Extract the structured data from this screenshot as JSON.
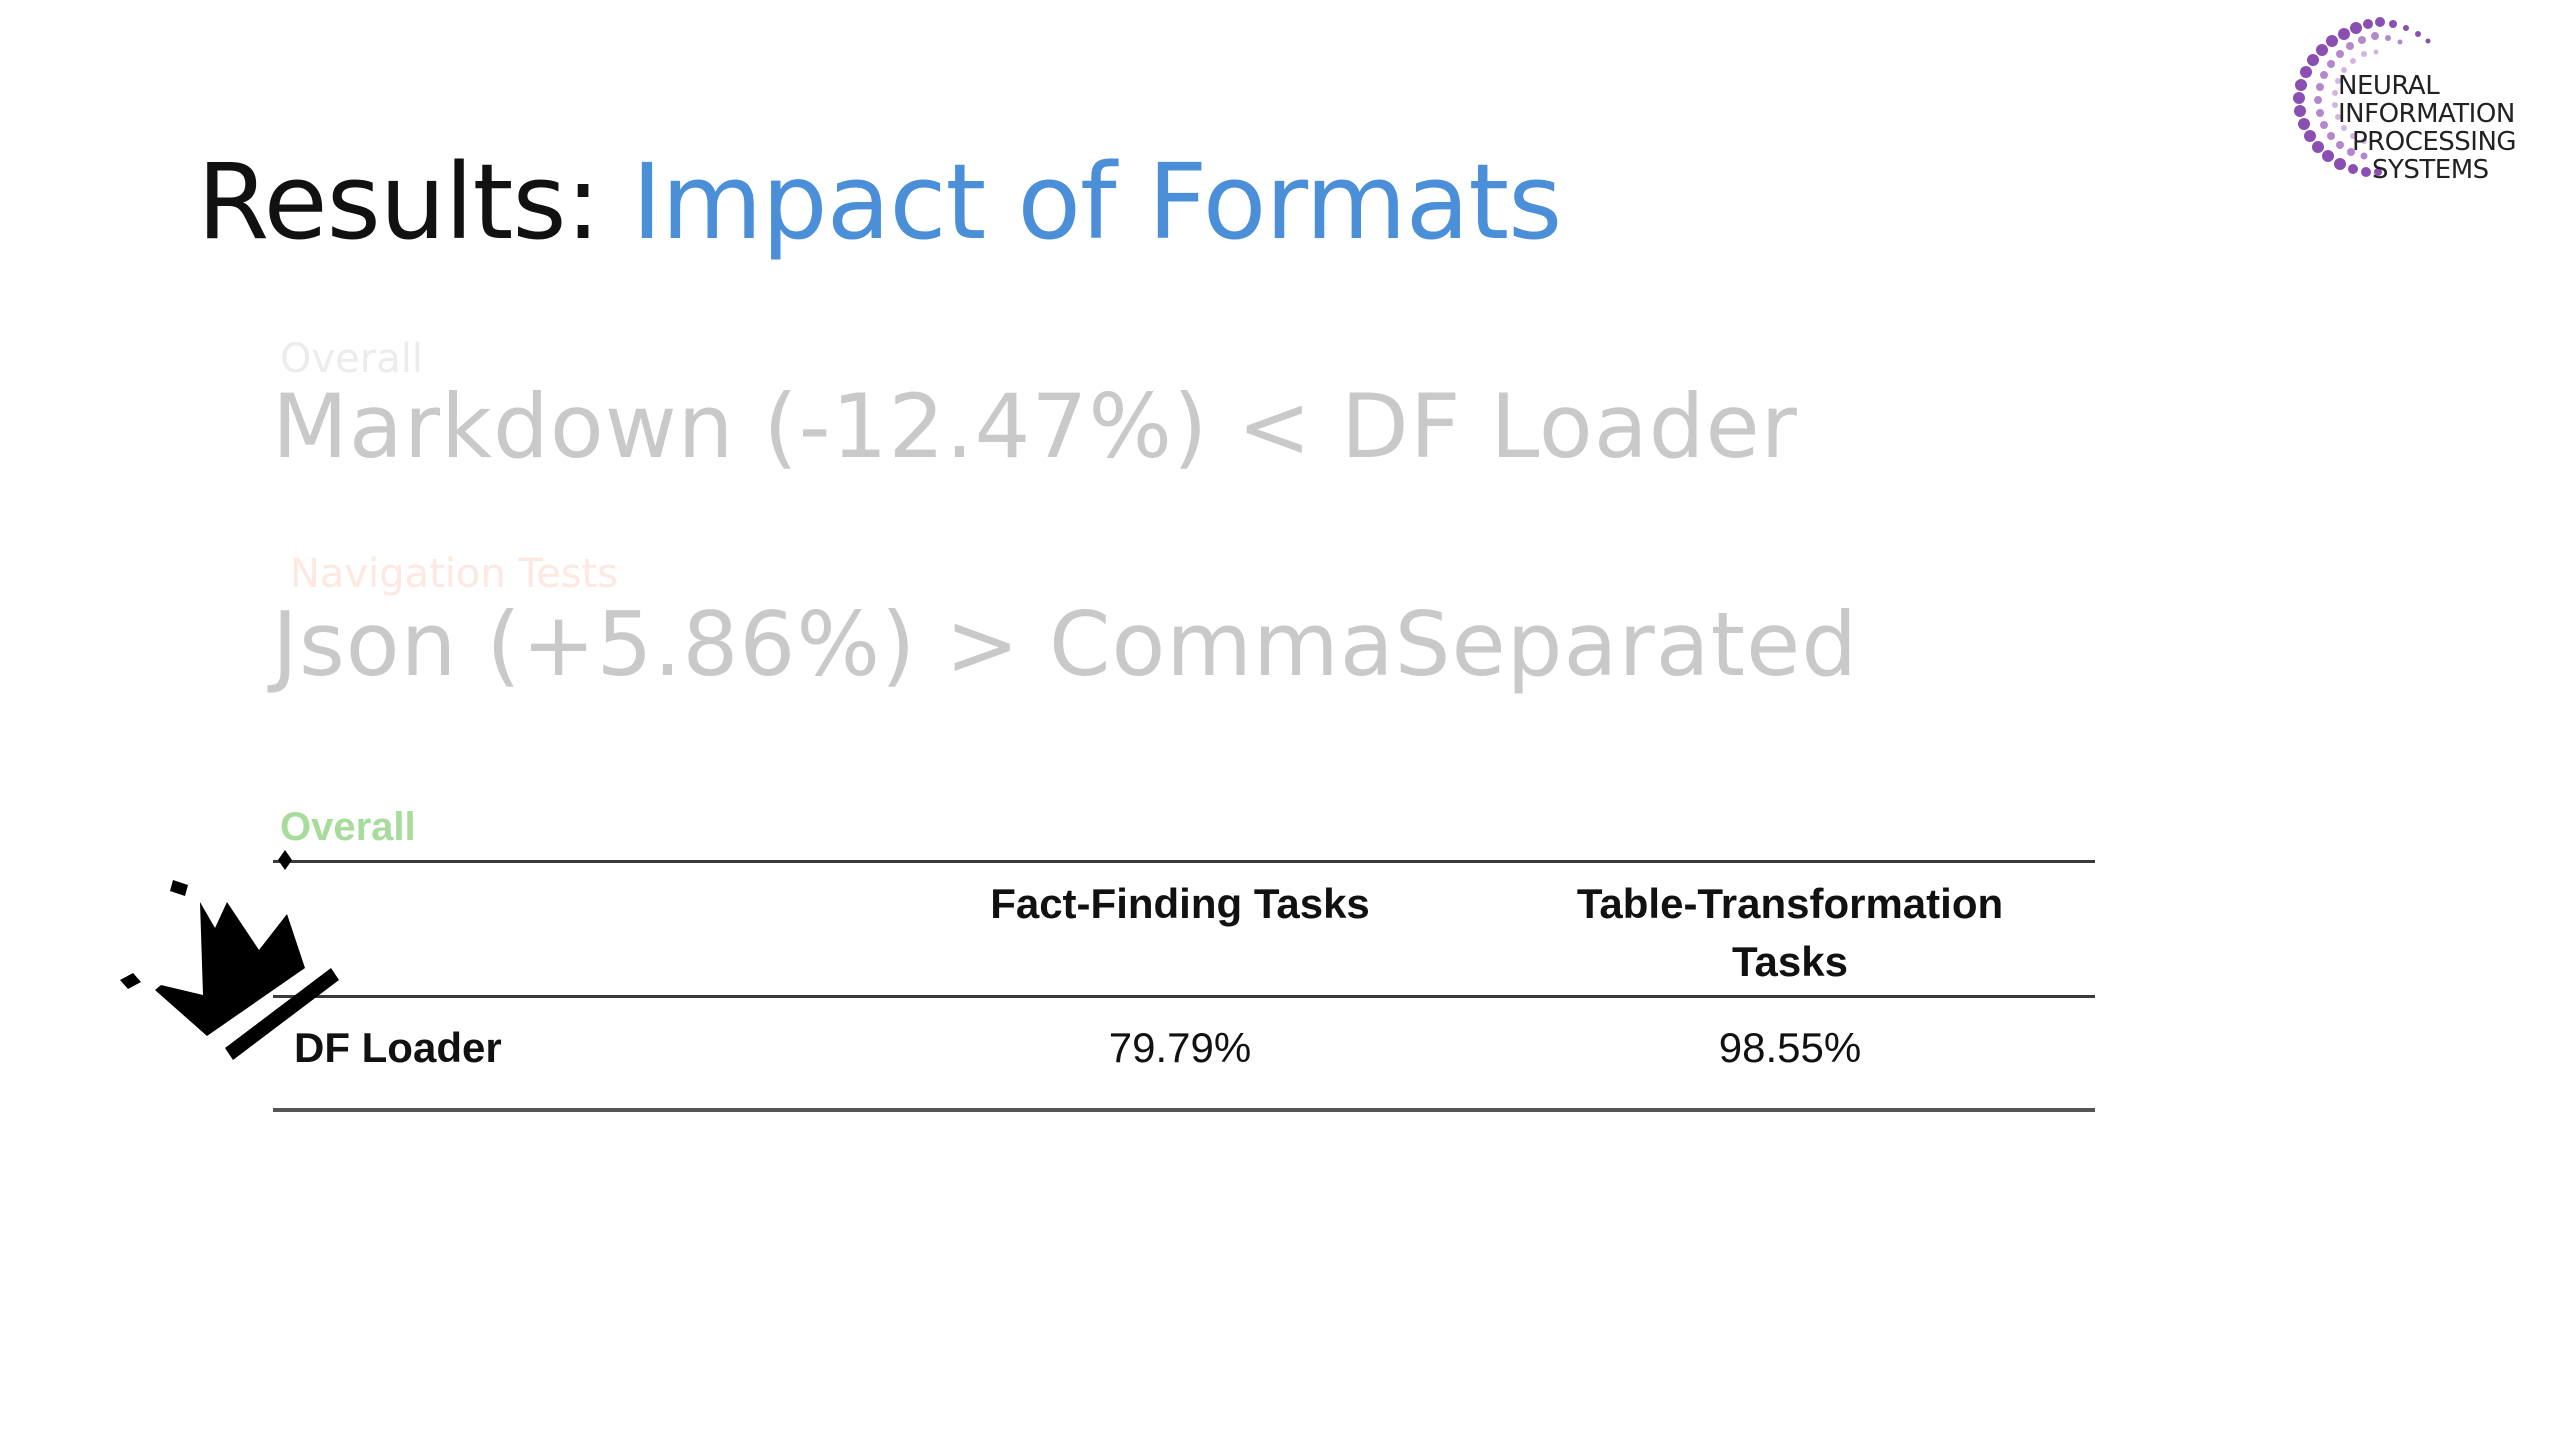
{
  "title": {
    "prefix": "Results: ",
    "highlight": "Impact of Formats"
  },
  "logo": {
    "lines": [
      "NEURAL",
      "INFORMATION",
      "PROCESSING",
      "SYSTEMS"
    ]
  },
  "comparisons": [
    {
      "label": "Overall",
      "text": "Markdown (-12.47%) < DF Loader"
    },
    {
      "label": "Navigation Tests",
      "text": "Json (+5.86%) > CommaSeparated"
    }
  ],
  "table": {
    "label": "Overall",
    "headers": [
      "",
      "Fact-Finding Tasks",
      "Table-Transformation Tasks"
    ],
    "rows": [
      {
        "name": "DF Loader",
        "values": [
          "79.79%",
          "98.55%"
        ]
      }
    ]
  },
  "colors": {
    "accent": "#4a8fd8",
    "faded_text": "#c9c9c9",
    "overall_green": "#a8dc9c",
    "logo_purple": "#8a4fb0"
  },
  "icons": [
    "neurips-logo-icon",
    "crown-icon"
  ]
}
